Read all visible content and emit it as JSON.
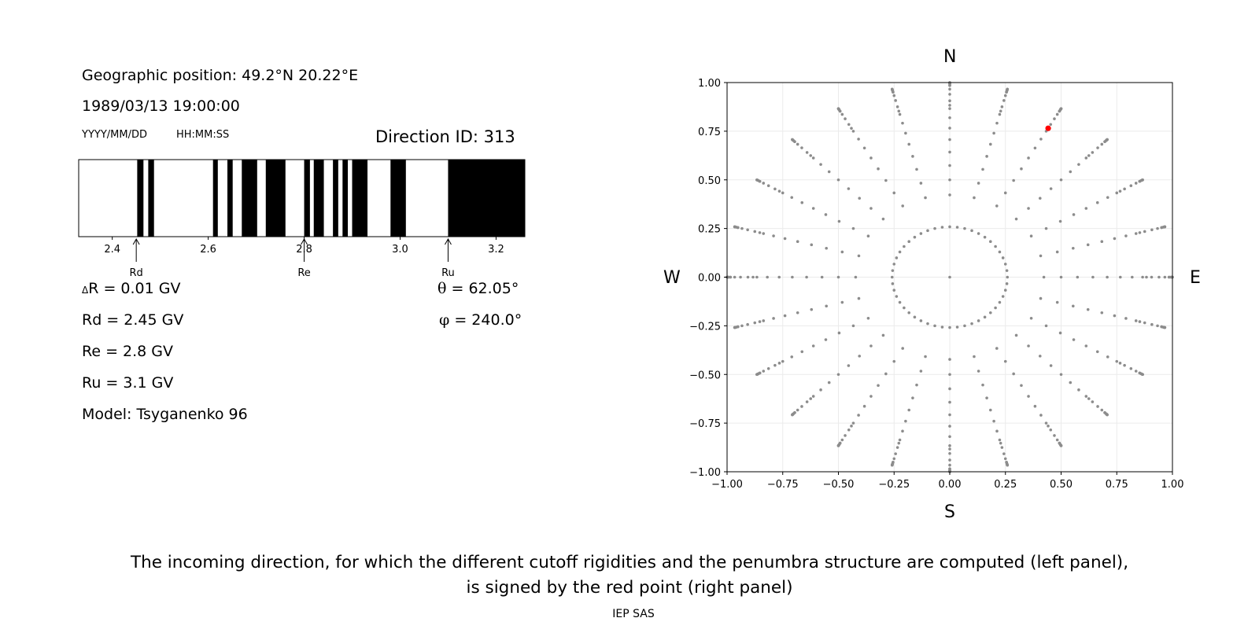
{
  "left_panel": {
    "geo_position": "Geographic position: 49.2°N 20.22°E",
    "datetime": "1989/03/13 19:00:00",
    "date_format": "YYYY/MM/DD",
    "time_format": "HH:MM:SS",
    "direction_id": "Direction ID: 313",
    "delta_r_symbol": "Δ",
    "delta_r": "R = 0.01 GV",
    "rd": "Rd = 2.45 GV",
    "re": "Re = 2.8 GV",
    "ru": "Ru = 3.1 GV",
    "model": "Model: Tsyganenko 96",
    "theta_symbol": "θ",
    "theta": " = 62.05°",
    "phi_symbol": "φ",
    "phi": " = 240.0°"
  },
  "right_panel": {
    "north": "N",
    "south": "S",
    "west": "W",
    "east": "E"
  },
  "caption": {
    "line1": "The incoming direction, for which the different cutoff rigidities and the penumbra structure are computed (left panel),",
    "line2": "is signed by the red point (right panel)"
  },
  "footer": "IEP SAS",
  "colors": {
    "grid_points": "#8c8c8c",
    "selected_point": "#ff0000",
    "forbidden": "#000000",
    "allowed": "#ffffff"
  },
  "chart_data": [
    {
      "type": "penumbra-bar",
      "xlim": [
        2.33,
        3.26
      ],
      "tick_values": [
        2.4,
        2.6,
        2.8,
        3.0,
        3.2
      ],
      "tick_labels": [
        "2.4",
        "2.6",
        "2.8",
        "3.0",
        "3.2"
      ],
      "forbidden_bands": [
        [
          2.452,
          2.465
        ],
        [
          2.475,
          2.487
        ],
        [
          2.61,
          2.62
        ],
        [
          2.64,
          2.651
        ],
        [
          2.67,
          2.702
        ],
        [
          2.72,
          2.761
        ],
        [
          2.8,
          2.812
        ],
        [
          2.82,
          2.841
        ],
        [
          2.86,
          2.871
        ],
        [
          2.88,
          2.891
        ],
        [
          2.9,
          2.932
        ],
        [
          2.98,
          3.012
        ],
        [
          3.1,
          3.26
        ]
      ],
      "markers": [
        {
          "label": "Rd",
          "value": 2.45
        },
        {
          "label": "Re",
          "value": 2.8
        },
        {
          "label": "Ru",
          "value": 3.1
        }
      ]
    },
    {
      "type": "scatter",
      "xlim": [
        -1.0,
        1.0
      ],
      "ylim": [
        -1.0,
        1.0
      ],
      "xticks": [
        -1.0,
        -0.75,
        -0.5,
        -0.25,
        0.0,
        0.25,
        0.5,
        0.75,
        1.0
      ],
      "yticks": [
        -1.0,
        -0.75,
        -0.5,
        -0.25,
        0.0,
        0.25,
        0.5,
        0.75,
        1.0
      ],
      "xtick_labels": [
        "−1.00",
        "−0.75",
        "−0.50",
        "−0.25",
        "0.00",
        "0.25",
        "0.50",
        "0.75",
        "1.00"
      ],
      "ytick_labels": [
        "−1.00",
        "−0.75",
        "−0.50",
        "−0.25",
        "0.00",
        "0.25",
        "0.50",
        "0.75",
        "1.00"
      ],
      "grid": true,
      "grid_pattern": {
        "theta_values_deg": [
          0,
          15,
          25,
          30,
          35,
          40,
          45,
          50,
          55,
          60,
          62.05,
          65,
          70,
          75,
          80,
          85,
          90
        ],
        "phi_step_deg": 15,
        "projection": "sin(theta)"
      },
      "selected": {
        "x": 0.442,
        "y": 0.765
      }
    }
  ]
}
